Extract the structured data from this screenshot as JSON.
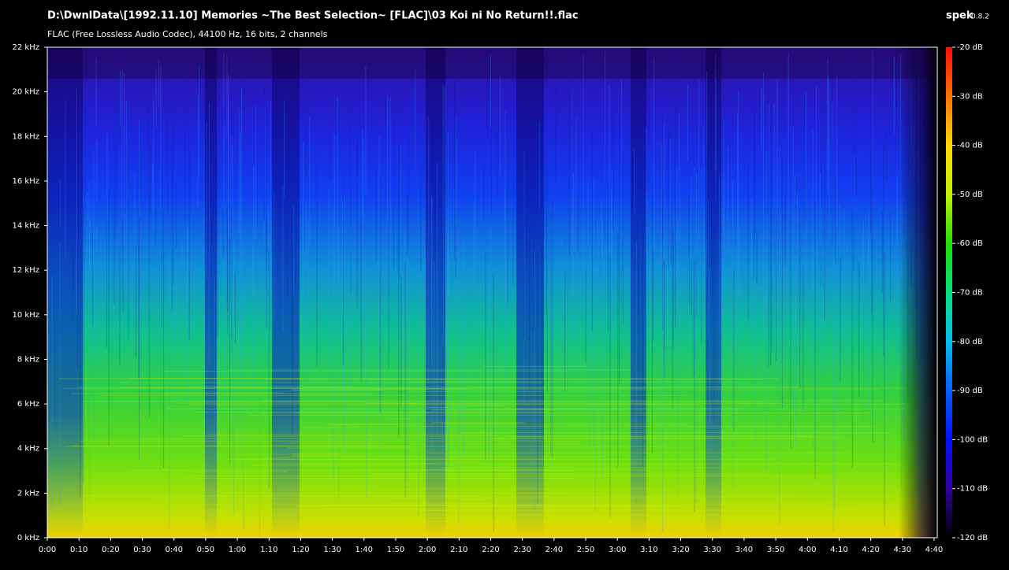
{
  "header": {
    "title": "D:\\DwnlData\\[1992.11.10] Memories ~The Best Selection~ [FLAC]\\03 Koi ni No Return!!.flac",
    "subtitle": "FLAC (Free Lossless Audio Codec), 44100 Hz, 16 bits, 2 channels",
    "app": "spek",
    "version": "0.8.2"
  },
  "frequency_axis": {
    "labels": [
      "0 kHz",
      "2 kHz",
      "4 kHz",
      "6 kHz",
      "8 kHz",
      "10 kHz",
      "12 kHz",
      "14 kHz",
      "16 kHz",
      "18 kHz",
      "20 kHz",
      "22 kHz"
    ]
  },
  "time_axis": {
    "labels": [
      "0:00",
      "0:10",
      "0:20",
      "0:30",
      "0:40",
      "0:50",
      "1:00",
      "1:10",
      "1:20",
      "1:30",
      "1:40",
      "1:50",
      "2:00",
      "2:10",
      "2:20",
      "2:30",
      "2:40",
      "2:50",
      "3:00",
      "3:10",
      "3:20",
      "3:30",
      "3:40",
      "3:50",
      "4:00",
      "4:10",
      "4:20",
      "4:30",
      "4:40"
    ]
  },
  "colorbar": {
    "labels": [
      "-20 dB",
      "-30 dB",
      "-40 dB",
      "-50 dB",
      "-60 dB",
      "-70 dB",
      "-80 dB",
      "-90 dB",
      "-100 dB",
      "-110 dB",
      "-120 dB"
    ]
  }
}
